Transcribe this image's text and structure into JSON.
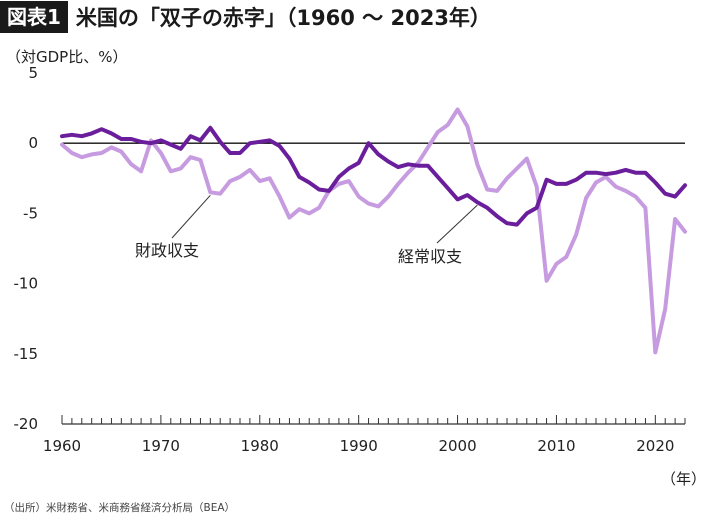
{
  "header": {
    "tag": "図表1",
    "title": "米国の「双子の赤字」（1960 〜 2023年）"
  },
  "footer": {
    "source": "（出所）米財務省、米商務省経済分析局（BEA）"
  },
  "chart_data": {
    "type": "line",
    "ylabel": "（対GDP比、%）",
    "xlabel": "（年）",
    "xlim": [
      1960,
      2023
    ],
    "ylim": [
      -20,
      5
    ],
    "yticks": [
      5,
      0,
      -5,
      -10,
      -15,
      -20
    ],
    "xticks": [
      1960,
      1970,
      1980,
      1990,
      2000,
      2010,
      2020
    ],
    "grid": false,
    "zero_line": true,
    "x": [
      1960,
      1961,
      1962,
      1963,
      1964,
      1965,
      1966,
      1967,
      1968,
      1969,
      1970,
      1971,
      1972,
      1973,
      1974,
      1975,
      1976,
      1977,
      1978,
      1979,
      1980,
      1981,
      1982,
      1983,
      1984,
      1985,
      1986,
      1987,
      1988,
      1989,
      1990,
      1991,
      1992,
      1993,
      1994,
      1995,
      1996,
      1997,
      1998,
      1999,
      2000,
      2001,
      2002,
      2003,
      2004,
      2005,
      2006,
      2007,
      2008,
      2009,
      2010,
      2011,
      2012,
      2013,
      2014,
      2015,
      2016,
      2017,
      2018,
      2019,
      2020,
      2021,
      2022,
      2023
    ],
    "series": [
      {
        "name": "財政収支",
        "color": "#c79be0",
        "values": [
          -0.1,
          -0.7,
          -1.0,
          -0.8,
          -0.7,
          -0.3,
          -0.6,
          -1.5,
          -2.0,
          0.2,
          -0.7,
          -2.0,
          -1.8,
          -1.0,
          -1.2,
          -3.5,
          -3.6,
          -2.7,
          -2.4,
          -1.9,
          -2.7,
          -2.5,
          -3.8,
          -5.3,
          -4.7,
          -5.0,
          -4.6,
          -3.4,
          -2.9,
          -2.7,
          -3.8,
          -4.3,
          -4.5,
          -3.8,
          -2.9,
          -2.1,
          -1.4,
          -0.3,
          0.8,
          1.3,
          2.4,
          1.2,
          -1.5,
          -3.3,
          -3.4,
          -2.5,
          -1.8,
          -1.1,
          -3.1,
          -9.8,
          -8.6,
          -8.1,
          -6.5,
          -3.9,
          -2.8,
          -2.4,
          -3.1,
          -3.4,
          -3.8,
          -4.6,
          -14.9,
          -11.8,
          -5.4,
          -6.3
        ]
      },
      {
        "name": "経常収支",
        "color": "#6a1e9c",
        "values": [
          0.5,
          0.6,
          0.5,
          0.7,
          1.0,
          0.7,
          0.3,
          0.3,
          0.1,
          0.0,
          0.2,
          -0.1,
          -0.4,
          0.5,
          0.2,
          1.1,
          0.1,
          -0.7,
          -0.7,
          0.0,
          0.1,
          0.2,
          -0.2,
          -1.1,
          -2.4,
          -2.8,
          -3.3,
          -3.4,
          -2.4,
          -1.8,
          -1.4,
          0.0,
          -0.8,
          -1.3,
          -1.7,
          -1.5,
          -1.6,
          -1.6,
          -2.4,
          -3.2,
          -4.0,
          -3.7,
          -4.2,
          -4.6,
          -5.2,
          -5.7,
          -5.8,
          -5.0,
          -4.6,
          -2.6,
          -2.9,
          -2.9,
          -2.6,
          -2.1,
          -2.1,
          -2.2,
          -2.1,
          -1.9,
          -2.1,
          -2.1,
          -2.8,
          -3.6,
          -3.8,
          -3.0
        ]
      }
    ],
    "annotations": [
      {
        "text": "財政収支",
        "series": "財政収支",
        "at_year": 1975
      },
      {
        "text": "経常収支",
        "series": "経常収支",
        "at_year": 2002
      }
    ]
  }
}
